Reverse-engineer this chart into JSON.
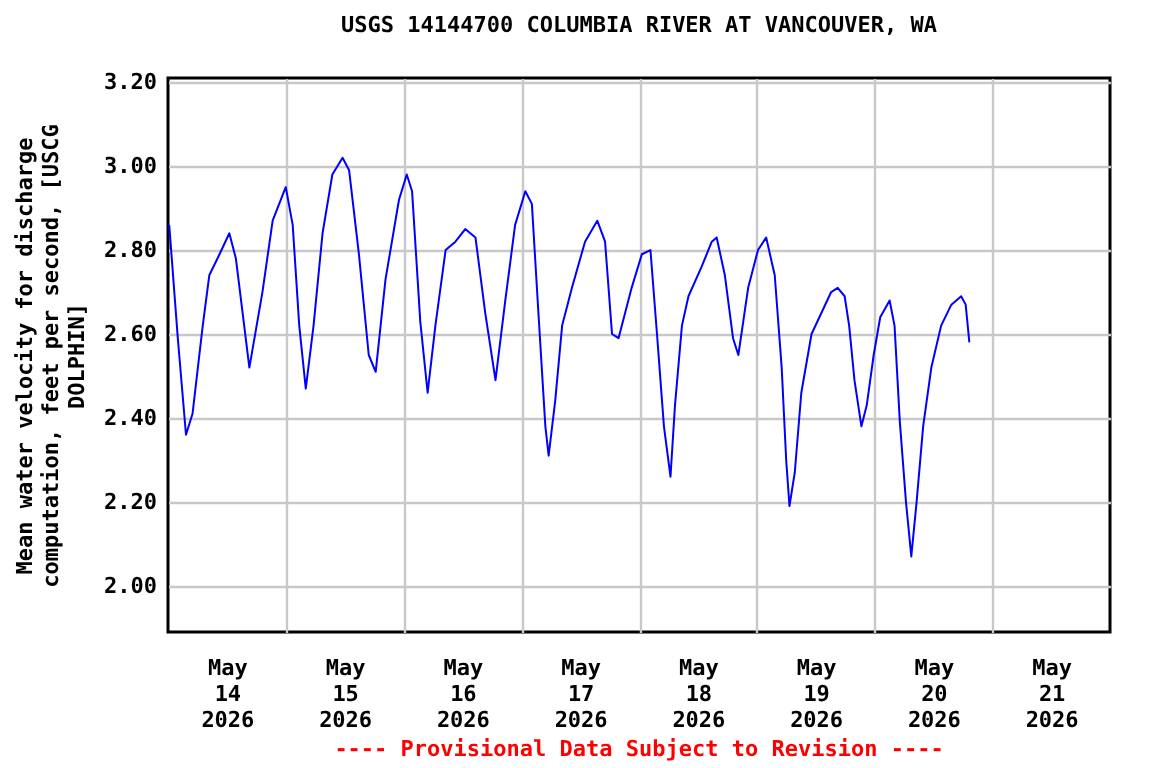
{
  "chart_data": {
    "type": "line",
    "title": "USGS 14144700 COLUMBIA RIVER AT VANCOUVER, WA",
    "ylabel": "Mean water velocity for discharge computation, feet per second, [USCG DOLPHIN]",
    "annotations": [
      "---- Provisional Data Subject to Revision ----"
    ],
    "x": [
      "2026-05-14T00:15",
      "2026-05-14T02:00",
      "2026-05-14T03:40",
      "2026-05-14T05:00",
      "2026-05-14T07:05",
      "2026-05-14T08:25",
      "2026-05-14T10:30",
      "2026-05-14T12:30",
      "2026-05-14T13:50",
      "2026-05-14T16:35",
      "2026-05-14T19:15",
      "2026-05-14T21:20",
      "2026-05-15T00:00",
      "2026-05-15T01:25",
      "2026-05-15T02:45",
      "2026-05-15T04:05",
      "2026-05-15T05:40",
      "2026-05-15T07:30",
      "2026-05-15T09:30",
      "2026-05-15T11:35",
      "2026-05-15T12:55",
      "2026-05-15T14:55",
      "2026-05-15T16:55",
      "2026-05-15T18:20",
      "2026-05-15T20:20",
      "2026-05-15T23:05",
      "2026-05-16T00:40",
      "2026-05-16T01:45",
      "2026-05-16T03:25",
      "2026-05-16T04:55",
      "2026-05-16T06:30",
      "2026-05-16T08:35",
      "2026-05-16T10:35",
      "2026-05-16T12:35",
      "2026-05-16T14:40",
      "2026-05-16T16:40",
      "2026-05-16T18:45",
      "2026-05-16T20:45",
      "2026-05-16T22:45",
      "2026-05-17T00:50",
      "2026-05-17T02:10",
      "2026-05-17T03:30",
      "2026-05-17T04:55",
      "2026-05-17T05:35",
      "2026-05-17T06:55",
      "2026-05-17T08:20",
      "2026-05-17T10:20",
      "2026-05-17T13:00",
      "2026-05-17T15:30",
      "2026-05-17T17:05",
      "2026-05-17T18:30",
      "2026-05-17T19:50",
      "2026-05-17T22:30",
      "2026-05-18T00:35",
      "2026-05-18T02:20",
      "2026-05-18T03:40",
      "2026-05-18T05:05",
      "2026-05-18T06:25",
      "2026-05-18T07:20",
      "2026-05-18T08:45",
      "2026-05-18T10:05",
      "2026-05-18T12:45",
      "2026-05-18T14:50",
      "2026-05-18T15:50",
      "2026-05-18T17:30",
      "2026-05-18T19:10",
      "2026-05-18T20:15",
      "2026-05-18T22:15",
      "2026-05-19T00:15",
      "2026-05-19T01:55",
      "2026-05-19T03:40",
      "2026-05-19T05:05",
      "2026-05-19T06:00",
      "2026-05-19T06:40",
      "2026-05-19T07:45",
      "2026-05-19T09:05",
      "2026-05-19T11:10",
      "2026-05-19T13:10",
      "2026-05-19T15:10",
      "2026-05-19T16:30",
      "2026-05-19T17:55",
      "2026-05-19T18:50",
      "2026-05-19T19:55",
      "2026-05-19T21:20",
      "2026-05-19T22:25",
      "2026-05-19T23:50",
      "2026-05-20T01:10",
      "2026-05-20T03:05",
      "2026-05-20T04:05",
      "2026-05-20T05:10",
      "2026-05-20T06:25",
      "2026-05-20T07:30",
      "2026-05-20T08:35",
      "2026-05-20T09:55",
      "2026-05-20T11:35",
      "2026-05-20T13:35",
      "2026-05-20T15:40",
      "2026-05-20T17:40",
      "2026-05-20T18:35",
      "2026-05-20T19:20"
    ],
    "series": [
      {
        "color": "#0000ff",
        "values": [
          2.86,
          2.59,
          2.36,
          2.41,
          2.62,
          2.74,
          2.79,
          2.84,
          2.78,
          2.52,
          2.7,
          2.87,
          2.95,
          2.86,
          2.62,
          2.47,
          2.62,
          2.84,
          2.98,
          3.02,
          2.99,
          2.79,
          2.55,
          2.51,
          2.73,
          2.92,
          2.98,
          2.94,
          2.63,
          2.46,
          2.62,
          2.8,
          2.82,
          2.85,
          2.83,
          2.65,
          2.49,
          2.68,
          2.86,
          2.94,
          2.91,
          2.65,
          2.38,
          2.31,
          2.44,
          2.62,
          2.71,
          2.82,
          2.87,
          2.82,
          2.6,
          2.59,
          2.71,
          2.79,
          2.8,
          2.6,
          2.38,
          2.26,
          2.43,
          2.62,
          2.69,
          2.76,
          2.82,
          2.83,
          2.74,
          2.59,
          2.55,
          2.71,
          2.8,
          2.83,
          2.74,
          2.52,
          2.3,
          2.19,
          2.27,
          2.46,
          2.6,
          2.65,
          2.7,
          2.71,
          2.69,
          2.62,
          2.49,
          2.38,
          2.43,
          2.55,
          2.64,
          2.68,
          2.62,
          2.39,
          2.2,
          2.07,
          2.2,
          2.38,
          2.52,
          2.62,
          2.67,
          2.69,
          2.67,
          2.58
        ]
      }
    ],
    "xlim": [
      "2026-05-14T00:00",
      "2026-05-22T00:00"
    ],
    "xticks": [
      {
        "value": "2026-05-14T12:00",
        "label": "May\n14\n2026"
      },
      {
        "value": "2026-05-15T00:00",
        "label": null
      },
      {
        "value": "2026-05-15T12:00",
        "label": "May\n15\n2026"
      },
      {
        "value": "2026-05-16T00:00",
        "label": null
      },
      {
        "value": "2026-05-16T12:00",
        "label": "May\n16\n2026"
      },
      {
        "value": "2026-05-17T00:00",
        "label": null
      },
      {
        "value": "2026-05-17T12:00",
        "label": "May\n17\n2026"
      },
      {
        "value": "2026-05-18T00:00",
        "label": null
      },
      {
        "value": "2026-05-18T12:00",
        "label": "May\n18\n2026"
      },
      {
        "value": "2026-05-19T00:00",
        "label": null
      },
      {
        "value": "2026-05-19T12:00",
        "label": "May\n19\n2026"
      },
      {
        "value": "2026-05-20T00:00",
        "label": null
      },
      {
        "value": "2026-05-20T12:00",
        "label": "May\n20\n2026"
      },
      {
        "value": "2026-05-21T00:00",
        "label": null
      },
      {
        "value": "2026-05-21T12:00",
        "label": "May\n21\n2026"
      }
    ],
    "ylim": [
      1.89,
      3.21
    ],
    "yticks": [
      {
        "value": 2.0,
        "label": "2.00"
      },
      {
        "value": 2.2,
        "label": "2.20"
      },
      {
        "value": 2.4,
        "label": "2.40"
      },
      {
        "value": 2.6,
        "label": "2.60"
      },
      {
        "value": 2.8,
        "label": "2.80"
      },
      {
        "value": 3.0,
        "label": "3.00"
      },
      {
        "value": 3.2,
        "label": "3.20"
      }
    ],
    "grid": true,
    "line_style": "solid",
    "marker": "none"
  }
}
